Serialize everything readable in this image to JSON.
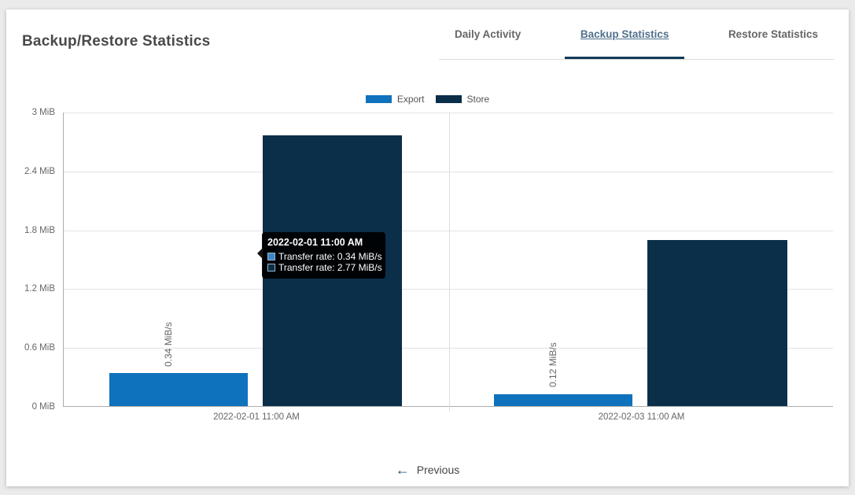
{
  "header": {
    "title": "Backup/Restore Statistics"
  },
  "tabs": [
    {
      "label": "Daily Activity",
      "active": false
    },
    {
      "label": "Backup Statistics",
      "active": true
    },
    {
      "label": "Restore Statistics",
      "active": false
    }
  ],
  "chart_data": {
    "type": "bar",
    "title": "",
    "categories": [
      "2022-02-01 11:00 AM",
      "2022-02-03 11:00 AM"
    ],
    "series": [
      {
        "name": "Export",
        "color": "#0f72bd",
        "values": [
          0.34,
          0.12
        ]
      },
      {
        "name": "Store",
        "color": "#0b2e49",
        "values": [
          2.77,
          1.7
        ]
      }
    ],
    "unit": "MiB/s",
    "ylim": [
      0,
      3
    ],
    "yticks": [
      "3 MiB",
      "2.4 MiB",
      "1.8 MiB",
      "1.2 MiB",
      "0.6 MiB",
      "0 MiB"
    ],
    "bar_labels": [
      "0.34 MiB/s",
      "0.12 MiB/s"
    ],
    "grid": true,
    "legend_position": "top-center"
  },
  "tooltip": {
    "title": "2022-02-01 11:00 AM",
    "rows": [
      {
        "swatch_color": "#3c87c7",
        "text": "Transfer rate: 0.34 MiB/s"
      },
      {
        "swatch_color": "#0b2e49",
        "text": "Transfer rate: 2.77 MiB/s"
      }
    ]
  },
  "footer": {
    "previous_label": "Previous",
    "arrow_icon": "←"
  },
  "colors": {
    "active_tab_text": "#51708c",
    "active_tab_bar": "#123a57",
    "link_arrow": "#154a70",
    "tooltip_bg": "#000000"
  }
}
